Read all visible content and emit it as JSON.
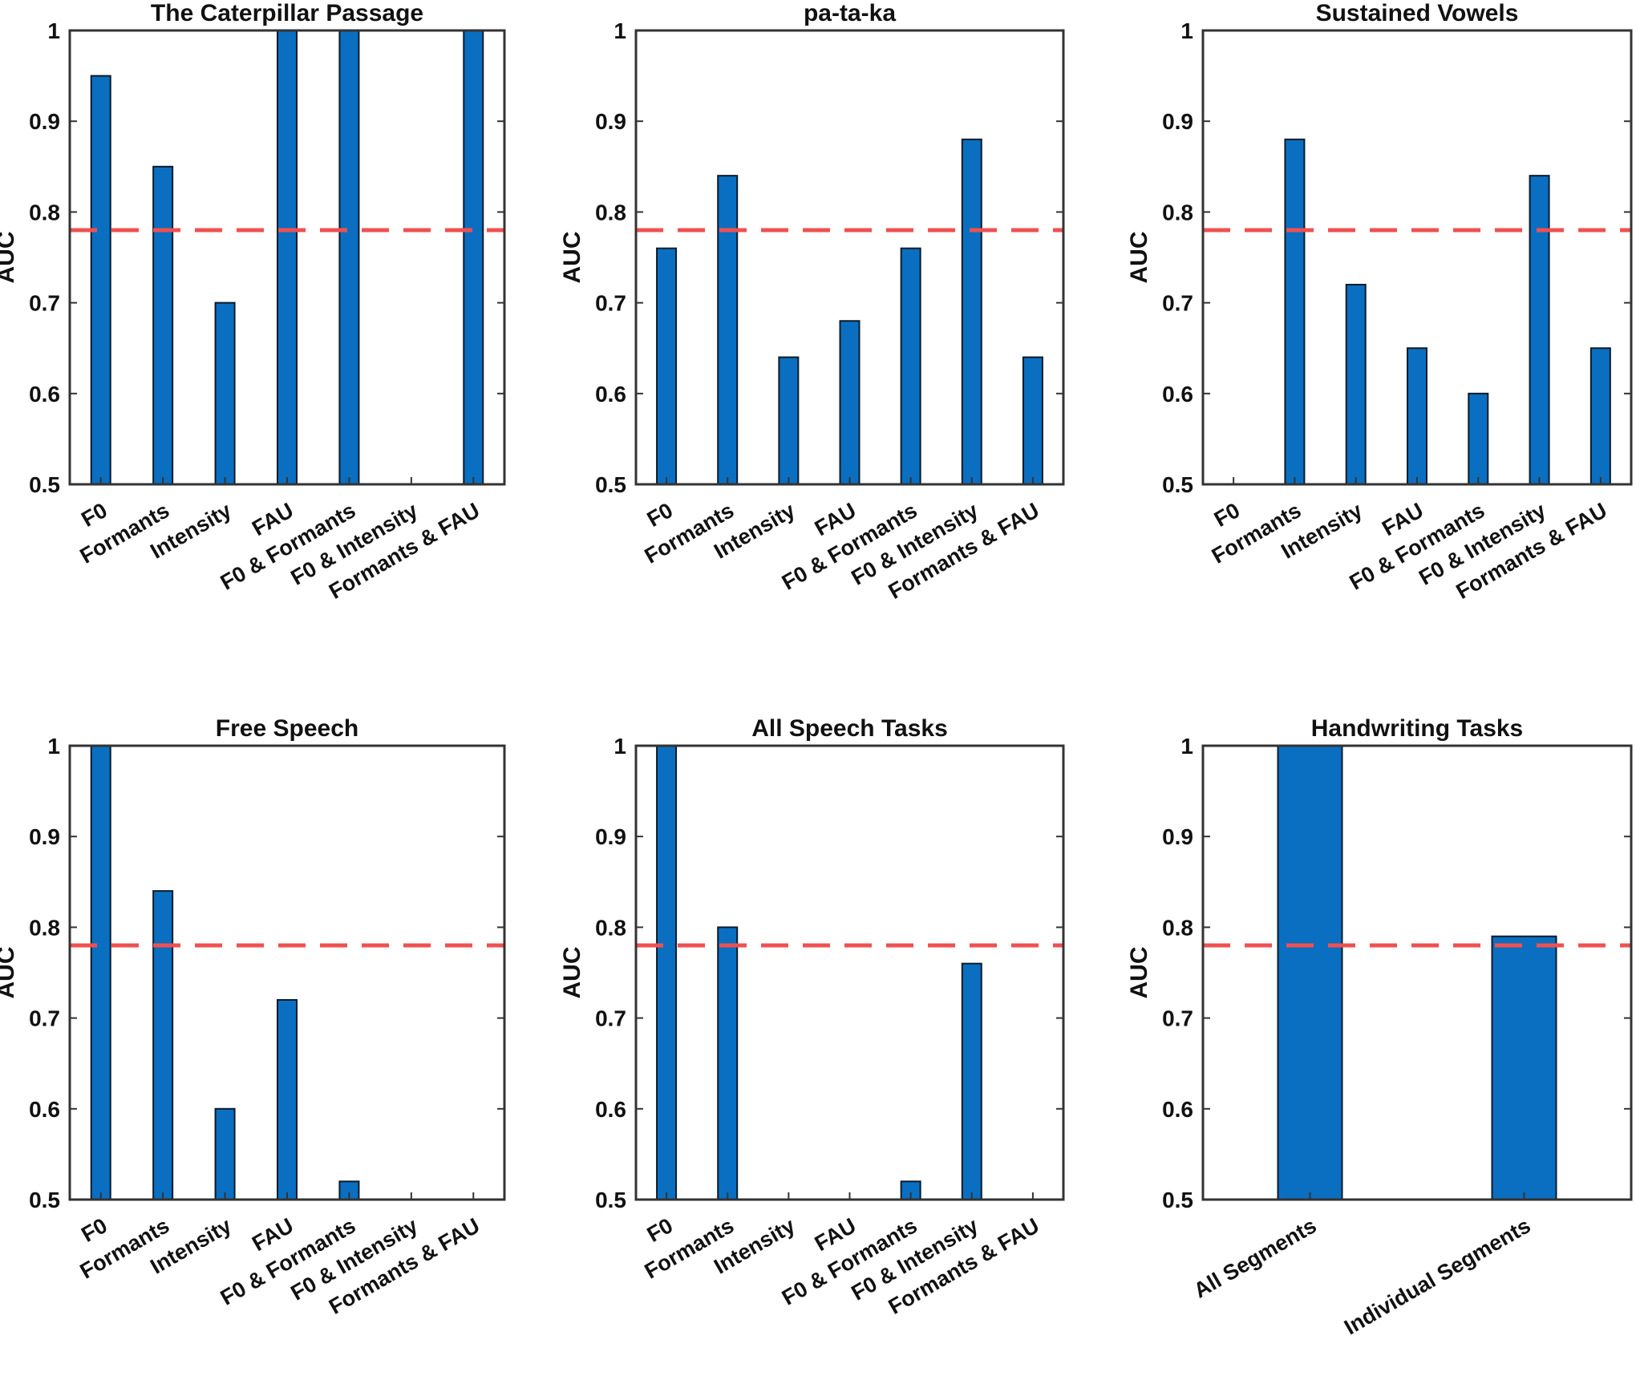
{
  "colors": {
    "bar": "#0a6fc0",
    "bar_edge": "#0d1b2a",
    "reference_line": "#f05050",
    "axis": "#333333"
  },
  "reference_line_value": 0.78,
  "chart_data": [
    {
      "type": "bar",
      "title": "The Caterpillar Passage",
      "ylabel": "AUC",
      "ylim": [
        0.5,
        1
      ],
      "yticks": [
        "0.5",
        "0.6",
        "0.7",
        "0.8",
        "0.9",
        "1"
      ],
      "categories": [
        "F0",
        "Formants",
        "Intensity",
        "FAU",
        "F0 & Formants",
        "F0 & Intensity",
        "Formants & FAU"
      ],
      "values": [
        0.95,
        0.85,
        0.7,
        1.0,
        1.0,
        0.5,
        1.0
      ]
    },
    {
      "type": "bar",
      "title": "pa-ta-ka",
      "ylabel": "AUC",
      "ylim": [
        0.5,
        1
      ],
      "yticks": [
        "0.5",
        "0.6",
        "0.7",
        "0.8",
        "0.9",
        "1"
      ],
      "categories": [
        "F0",
        "Formants",
        "Intensity",
        "FAU",
        "F0 & Formants",
        "F0 & Intensity",
        "Formants & FAU"
      ],
      "values": [
        0.76,
        0.84,
        0.64,
        0.68,
        0.76,
        0.88,
        0.64
      ]
    },
    {
      "type": "bar",
      "title": "Sustained Vowels",
      "ylabel": "AUC",
      "ylim": [
        0.5,
        1
      ],
      "yticks": [
        "0.5",
        "0.6",
        "0.7",
        "0.8",
        "0.9",
        "1"
      ],
      "categories": [
        "F0",
        "Formants",
        "Intensity",
        "FAU",
        "F0 & Formants",
        "F0 & Intensity",
        "Formants & FAU"
      ],
      "values": [
        0.5,
        0.88,
        0.72,
        0.65,
        0.6,
        0.84,
        0.65
      ]
    },
    {
      "type": "bar",
      "title": "Free Speech",
      "ylabel": "AUC",
      "ylim": [
        0.5,
        1
      ],
      "yticks": [
        "0.5",
        "0.6",
        "0.7",
        "0.8",
        "0.9",
        "1"
      ],
      "categories": [
        "F0",
        "Formants",
        "Intensity",
        "FAU",
        "F0 & Formants",
        "F0 & Intensity",
        "Formants & FAU"
      ],
      "values": [
        1.0,
        0.84,
        0.6,
        0.72,
        0.52,
        0.5,
        0.5
      ]
    },
    {
      "type": "bar",
      "title": "All Speech Tasks",
      "ylabel": "AUC",
      "ylim": [
        0.5,
        1
      ],
      "yticks": [
        "0.5",
        "0.6",
        "0.7",
        "0.8",
        "0.9",
        "1"
      ],
      "categories": [
        "F0",
        "Formants",
        "Intensity",
        "FAU",
        "F0 & Formants",
        "F0 & Intensity",
        "Formants & FAU"
      ],
      "values": [
        1.0,
        0.8,
        0.5,
        0.5,
        0.52,
        0.76,
        0.5
      ]
    },
    {
      "type": "bar",
      "title": "Handwriting Tasks",
      "ylabel": "AUC",
      "ylim": [
        0.5,
        1
      ],
      "yticks": [
        "0.5",
        "0.6",
        "0.7",
        "0.8",
        "0.9",
        "1"
      ],
      "categories": [
        "All Segments",
        "Individual Segments"
      ],
      "values": [
        1.0,
        0.79
      ]
    }
  ]
}
